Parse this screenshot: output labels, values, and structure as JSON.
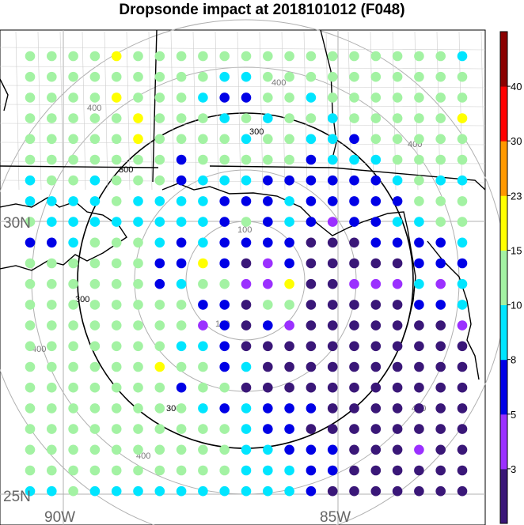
{
  "title": "Dropsonde impact at 2018101012 (F048)",
  "colorbar": {
    "colors": [
      "#3a1778",
      "#9b30ff",
      "#0000e6",
      "#00e5ff",
      "#a3f2a3",
      "#ffff00",
      "#ff9900",
      "#ff0000",
      "#8b0000"
    ],
    "ticks": [
      "3",
      "5",
      "8",
      "10",
      "15",
      "23",
      "30",
      "40"
    ]
  },
  "map_labels": {
    "lat_30": "30N",
    "lat_25": "25N",
    "lon_90": "90W",
    "lon_85": "85W"
  },
  "range_rings": {
    "ring_100_label": "100",
    "ring_300_label": "300",
    "ring_400_label": "400"
  },
  "chart_data": {
    "type": "map-scatter",
    "title": "Dropsonde impact at 2018101012 (F048)",
    "lon_range": [
      -91.5,
      -83.2
    ],
    "lat_range": [
      24.6,
      31.5
    ],
    "grid_points": {
      "row_labels_note": "rows top->bottom, columns left->right; values are colorbar class indices 0..8 (0=<3, 1=3-5, 2=5-8, 3=8-10, 4=10-15, 5=15-23, 6=23-30, 7=30-40, 8=>40); -1 = no dot",
      "rows": [
        [
          4,
          4,
          4,
          4,
          5,
          4,
          4,
          4,
          4,
          4,
          4,
          4,
          4,
          4,
          4,
          4,
          4,
          4,
          4,
          4,
          3
        ],
        [
          4,
          4,
          4,
          4,
          4,
          4,
          4,
          4,
          4,
          3,
          3,
          4,
          4,
          4,
          4,
          4,
          4,
          4,
          4,
          4,
          4
        ],
        [
          4,
          4,
          4,
          4,
          5,
          4,
          4,
          4,
          3,
          2,
          2,
          4,
          4,
          3,
          4,
          4,
          4,
          4,
          4,
          4,
          4
        ],
        [
          4,
          4,
          4,
          4,
          4,
          5,
          4,
          4,
          4,
          3,
          4,
          3,
          4,
          4,
          3,
          4,
          4,
          4,
          4,
          4,
          5
        ],
        [
          4,
          4,
          4,
          4,
          4,
          5,
          4,
          4,
          4,
          4,
          3,
          4,
          4,
          3,
          3,
          2,
          4,
          4,
          4,
          4,
          4
        ],
        [
          4,
          4,
          4,
          4,
          4,
          4,
          4,
          2,
          4,
          4,
          4,
          4,
          4,
          2,
          3,
          3,
          3,
          4,
          4,
          4,
          4
        ],
        [
          3,
          4,
          4,
          3,
          4,
          4,
          4,
          2,
          3,
          3,
          3,
          2,
          2,
          2,
          2,
          2,
          2,
          3,
          4,
          3,
          3
        ],
        [
          3,
          3,
          3,
          3,
          4,
          3,
          3,
          3,
          3,
          2,
          2,
          2,
          3,
          2,
          2,
          2,
          2,
          2,
          4,
          4,
          4
        ],
        [
          4,
          3,
          3,
          3,
          3,
          3,
          3,
          3,
          3,
          2,
          4,
          2,
          3,
          2,
          1,
          2,
          2,
          3,
          3,
          4,
          4
        ],
        [
          2,
          2,
          3,
          4,
          4,
          4,
          3,
          2,
          3,
          2,
          2,
          2,
          2,
          0,
          0,
          0,
          2,
          2,
          2,
          2,
          3
        ],
        [
          4,
          4,
          4,
          4,
          4,
          4,
          2,
          2,
          5,
          2,
          0,
          1,
          2,
          0,
          0,
          0,
          0,
          0,
          2,
          2,
          2
        ],
        [
          4,
          4,
          4,
          4,
          4,
          4,
          2,
          3,
          4,
          4,
          1,
          1,
          5,
          0,
          0,
          1,
          1,
          1,
          3,
          1,
          3
        ],
        [
          4,
          4,
          4,
          4,
          4,
          4,
          4,
          4,
          2,
          2,
          0,
          4,
          4,
          0,
          0,
          0,
          0,
          0,
          2,
          2,
          3
        ],
        [
          4,
          4,
          4,
          4,
          4,
          4,
          4,
          4,
          1,
          2,
          0,
          2,
          1,
          0,
          0,
          0,
          0,
          0,
          0,
          0,
          1
        ],
        [
          4,
          4,
          4,
          4,
          4,
          4,
          4,
          3,
          3,
          2,
          0,
          0,
          0,
          0,
          0,
          0,
          0,
          0,
          0,
          0,
          0
        ],
        [
          4,
          4,
          4,
          4,
          4,
          4,
          5,
          4,
          4,
          2,
          3,
          0,
          0,
          0,
          0,
          0,
          0,
          0,
          0,
          0,
          0
        ],
        [
          4,
          4,
          4,
          4,
          4,
          4,
          4,
          2,
          4,
          4,
          0,
          0,
          0,
          0,
          0,
          0,
          0,
          0,
          0,
          0,
          0
        ],
        [
          4,
          4,
          4,
          4,
          4,
          4,
          4,
          4,
          3,
          2,
          3,
          2,
          2,
          2,
          0,
          0,
          0,
          0,
          0,
          0,
          0
        ],
        [
          4,
          4,
          4,
          4,
          4,
          4,
          4,
          4,
          4,
          4,
          3,
          2,
          2,
          0,
          0,
          0,
          0,
          0,
          0,
          0,
          0
        ],
        [
          4,
          4,
          4,
          4,
          4,
          4,
          4,
          4,
          4,
          4,
          3,
          3,
          2,
          2,
          2,
          0,
          0,
          0,
          1,
          0,
          0
        ],
        [
          4,
          4,
          4,
          4,
          4,
          4,
          4,
          4,
          4,
          4,
          3,
          3,
          3,
          2,
          2,
          0,
          0,
          0,
          0,
          0,
          0
        ],
        [
          3,
          3,
          4,
          3,
          3,
          3,
          3,
          3,
          3,
          3,
          3,
          3,
          3,
          2,
          0,
          0,
          0,
          0,
          0,
          0,
          0
        ]
      ]
    },
    "range_rings_km": [
      100,
      300,
      400
    ],
    "legend_placement": "right"
  }
}
